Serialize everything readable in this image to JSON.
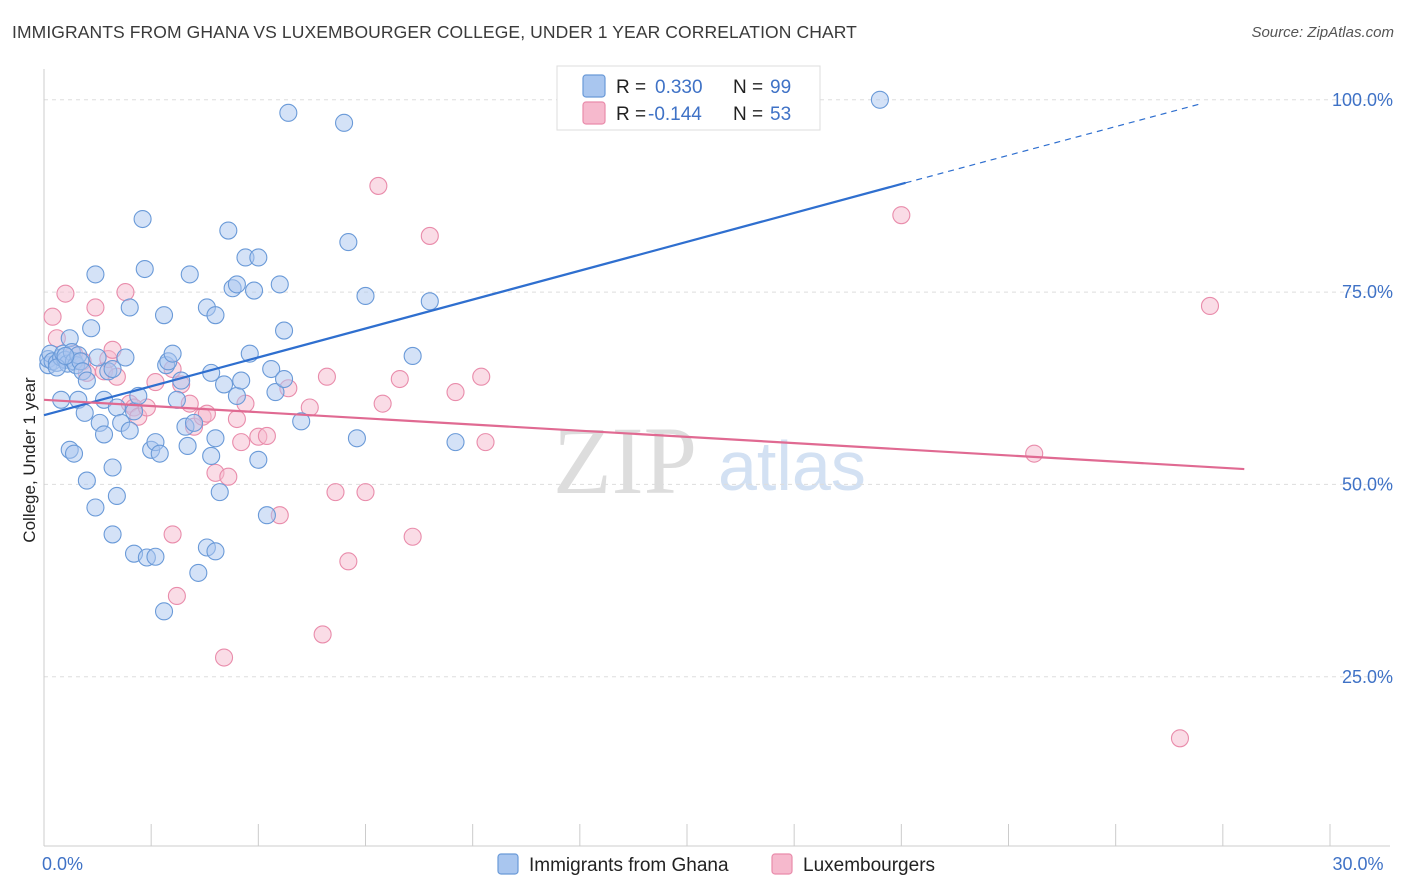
{
  "title": "IMMIGRANTS FROM GHANA VS LUXEMBOURGER COLLEGE, UNDER 1 YEAR CORRELATION CHART",
  "source": "Source: ZipAtlas.com",
  "watermark": {
    "zip": "ZIP",
    "atlas": "atlas"
  },
  "colors": {
    "blue_fill": "#a9c6ef",
    "blue_stroke": "#6a9ad8",
    "blue_line": "#2f6fcf",
    "pink_fill": "#f6b9cd",
    "pink_stroke": "#e98cab",
    "pink_line": "#e06a92",
    "grid": "#dddddd",
    "tick_text": "#3f72c6"
  },
  "legend_top": {
    "rows": [
      {
        "r_label": "R =",
        "r_value": "0.330",
        "n_label": "N =",
        "n_value": "99",
        "series": "blue"
      },
      {
        "r_label": "R =",
        "r_value": "-0.144",
        "n_label": "N =",
        "n_value": "53",
        "series": "pink"
      }
    ]
  },
  "chart_data": {
    "type": "scatter",
    "title": "IMMIGRANTS FROM GHANA VS LUXEMBOURGER COLLEGE, UNDER 1 YEAR CORRELATION CHART",
    "xlabel": "",
    "ylabel": "College, Under 1 year",
    "xlim": [
      0,
      30
    ],
    "ylim": [
      3,
      104
    ],
    "x_ticks": [
      {
        "value": 0,
        "label": "0.0%"
      },
      {
        "value": 30,
        "label": "30.0%"
      }
    ],
    "y_ticks": [
      {
        "value": 25,
        "label": "25.0%"
      },
      {
        "value": 50,
        "label": "50.0%"
      },
      {
        "value": 75,
        "label": "75.0%"
      },
      {
        "value": 100,
        "label": "100.0%"
      }
    ],
    "grid": true,
    "legend": [
      {
        "name": "Immigrants from Ghana",
        "color": "#a9c6ef"
      },
      {
        "name": "Luxembourgers",
        "color": "#f6b9cd"
      }
    ],
    "series": [
      {
        "name": "Immigrants from Ghana",
        "r": 0.33,
        "n": 99,
        "trend": {
          "x0": 0,
          "y0": 59.0,
          "x1": 20.1,
          "y1": 89.2,
          "dashed_to_x": 27.0,
          "dashed_to_y": 99.5
        },
        "points": [
          [
            0.1,
            65.5
          ],
          [
            0.1,
            66.3
          ],
          [
            0.15,
            67.0
          ],
          [
            0.2,
            66.0
          ],
          [
            0.3,
            65.8
          ],
          [
            0.4,
            66.5
          ],
          [
            0.45,
            67.0
          ],
          [
            0.5,
            66.2
          ],
          [
            0.55,
            65.7
          ],
          [
            0.6,
            69.0
          ],
          [
            0.65,
            67.2
          ],
          [
            0.7,
            66.0
          ],
          [
            0.75,
            65.5
          ],
          [
            0.8,
            66.8
          ],
          [
            0.85,
            66.0
          ],
          [
            0.9,
            64.7
          ],
          [
            1.0,
            63.5
          ],
          [
            1.1,
            70.3
          ],
          [
            1.2,
            77.3
          ],
          [
            1.25,
            66.5
          ],
          [
            1.3,
            58.0
          ],
          [
            1.4,
            61.0
          ],
          [
            1.5,
            64.7
          ],
          [
            1.6,
            65.0
          ],
          [
            1.7,
            60.0
          ],
          [
            1.8,
            58.0
          ],
          [
            1.9,
            66.5
          ],
          [
            2.0,
            73.0
          ],
          [
            2.1,
            59.5
          ],
          [
            2.2,
            61.5
          ],
          [
            2.0,
            57.0
          ],
          [
            2.3,
            84.5
          ],
          [
            2.35,
            78.0
          ],
          [
            2.5,
            54.5
          ],
          [
            2.6,
            55.5
          ],
          [
            2.7,
            54.0
          ],
          [
            2.8,
            72.0
          ],
          [
            2.85,
            65.5
          ],
          [
            2.9,
            66.0
          ],
          [
            3.0,
            67.0
          ],
          [
            3.1,
            61.0
          ],
          [
            3.2,
            63.5
          ],
          [
            3.3,
            57.5
          ],
          [
            3.35,
            55.0
          ],
          [
            3.4,
            77.3
          ],
          [
            3.5,
            58.0
          ],
          [
            3.6,
            38.5
          ],
          [
            3.8,
            73.0
          ],
          [
            3.9,
            64.5
          ],
          [
            4.0,
            72.0
          ],
          [
            3.9,
            53.7
          ],
          [
            4.0,
            56.0
          ],
          [
            4.1,
            49.0
          ],
          [
            4.2,
            63.0
          ],
          [
            4.3,
            83.0
          ],
          [
            4.4,
            75.5
          ],
          [
            4.5,
            76.0
          ],
          [
            4.5,
            61.5
          ],
          [
            4.6,
            63.5
          ],
          [
            4.7,
            79.5
          ],
          [
            4.8,
            67.0
          ],
          [
            4.9,
            75.2
          ],
          [
            5.0,
            79.5
          ],
          [
            5.0,
            53.2
          ],
          [
            5.2,
            46.0
          ],
          [
            5.3,
            65.0
          ],
          [
            5.4,
            62.0
          ],
          [
            5.5,
            76.0
          ],
          [
            5.6,
            70.0
          ],
          [
            5.6,
            63.7
          ],
          [
            0.4,
            61.0
          ],
          [
            0.6,
            54.5
          ],
          [
            0.7,
            54.0
          ],
          [
            0.8,
            61.0
          ],
          [
            0.95,
            59.3
          ],
          [
            1.0,
            50.5
          ],
          [
            1.2,
            47.0
          ],
          [
            1.4,
            56.5
          ],
          [
            1.6,
            43.5
          ],
          [
            1.6,
            52.2
          ],
          [
            1.7,
            48.5
          ],
          [
            2.1,
            41.0
          ],
          [
            2.4,
            40.5
          ],
          [
            2.6,
            40.6
          ],
          [
            2.8,
            33.5
          ],
          [
            3.8,
            41.8
          ],
          [
            4.0,
            41.3
          ],
          [
            5.7,
            98.3
          ],
          [
            6.0,
            58.2
          ],
          [
            7.0,
            97.0
          ],
          [
            7.1,
            81.5
          ],
          [
            7.3,
            56.0
          ],
          [
            7.5,
            74.5
          ],
          [
            8.6,
            66.7
          ],
          [
            9.0,
            73.8
          ],
          [
            9.6,
            55.5
          ],
          [
            19.5,
            100.0
          ],
          [
            0.3,
            65.2
          ],
          [
            0.5,
            66.7
          ]
        ]
      },
      {
        "name": "Luxembourgers",
        "r": -0.144,
        "n": 53,
        "trend": {
          "x0": 0,
          "y0": 61.0,
          "x1": 28.0,
          "y1": 52.0
        },
        "points": [
          [
            0.2,
            71.8
          ],
          [
            0.3,
            69.0
          ],
          [
            0.5,
            74.8
          ],
          [
            0.7,
            67.0
          ],
          [
            0.9,
            66.0
          ],
          [
            1.0,
            64.5
          ],
          [
            1.2,
            73.0
          ],
          [
            1.4,
            64.7
          ],
          [
            1.5,
            66.3
          ],
          [
            1.6,
            67.5
          ],
          [
            1.7,
            64.0
          ],
          [
            1.9,
            75.0
          ],
          [
            2.0,
            60.5
          ],
          [
            2.1,
            60.0
          ],
          [
            2.2,
            58.8
          ],
          [
            2.4,
            60.0
          ],
          [
            2.6,
            63.3
          ],
          [
            3.0,
            65.0
          ],
          [
            3.2,
            63.0
          ],
          [
            3.4,
            60.5
          ],
          [
            3.5,
            57.5
          ],
          [
            3.7,
            58.8
          ],
          [
            3.8,
            59.2
          ],
          [
            4.0,
            51.5
          ],
          [
            4.3,
            51.0
          ],
          [
            4.5,
            58.5
          ],
          [
            4.6,
            55.5
          ],
          [
            4.7,
            60.5
          ],
          [
            5.0,
            56.2
          ],
          [
            5.2,
            56.3
          ],
          [
            5.5,
            46.0
          ],
          [
            5.7,
            62.5
          ],
          [
            6.2,
            60.0
          ],
          [
            6.6,
            64.0
          ],
          [
            6.8,
            49.0
          ],
          [
            7.1,
            40.0
          ],
          [
            7.5,
            49.0
          ],
          [
            7.8,
            88.8
          ],
          [
            7.9,
            60.5
          ],
          [
            8.3,
            63.7
          ],
          [
            8.6,
            43.2
          ],
          [
            9.0,
            82.3
          ],
          [
            9.6,
            62.0
          ],
          [
            10.2,
            64.0
          ],
          [
            10.3,
            55.5
          ],
          [
            3.0,
            43.5
          ],
          [
            3.1,
            35.5
          ],
          [
            4.2,
            27.5
          ],
          [
            6.5,
            30.5
          ],
          [
            20.0,
            85.0
          ],
          [
            23.1,
            54.0
          ],
          [
            26.5,
            17.0
          ],
          [
            27.2,
            73.2
          ]
        ]
      }
    ]
  }
}
